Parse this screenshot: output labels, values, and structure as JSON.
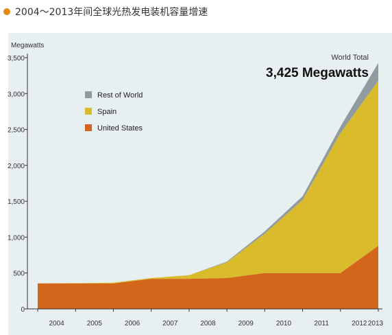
{
  "title": "2004～2013年间全球光热发电装机容量增速",
  "colors": {
    "background": "#ffffff",
    "plot_background": "#e8eff1",
    "title_dot": "#e08a12",
    "united_states": "#d4661c",
    "spain": "#d9bb2b",
    "rest_of_world": "#8f9ba0",
    "axis": "#333333"
  },
  "chart_data": {
    "type": "area",
    "stacked": true,
    "title": "2004～2013年间全球光热发电装机容量增速",
    "xlabel": "",
    "ylabel": "Megawatts",
    "x": [
      "2004",
      "2005",
      "2006",
      "2007",
      "2008",
      "2009",
      "2010",
      "2011",
      "2012",
      "2013"
    ],
    "ylim": [
      0,
      3500
    ],
    "yticks": [
      0,
      500,
      1000,
      1500,
      2000,
      2500,
      3000,
      3500
    ],
    "ytick_labels": [
      "0",
      "500",
      "1,000",
      "1,500",
      "2,000",
      "2,500",
      "3,000",
      "3,500"
    ],
    "series": [
      {
        "name": "United States",
        "values": [
          355,
          355,
          355,
          420,
          420,
          430,
          500,
          500,
          500,
          880
        ]
      },
      {
        "name": "Spain",
        "values": [
          0,
          5,
          10,
          10,
          50,
          220,
          550,
          1020,
          1950,
          2300
        ]
      },
      {
        "name": "Rest of World",
        "values": [
          0,
          0,
          0,
          0,
          0,
          10,
          30,
          50,
          90,
          245
        ]
      }
    ],
    "annotation": {
      "label": "World Total",
      "value_text": "3,425 Megawatts"
    },
    "legend": {
      "placement": "top-left",
      "items": [
        "Rest of World",
        "Spain",
        "United States"
      ]
    },
    "grid": false
  }
}
